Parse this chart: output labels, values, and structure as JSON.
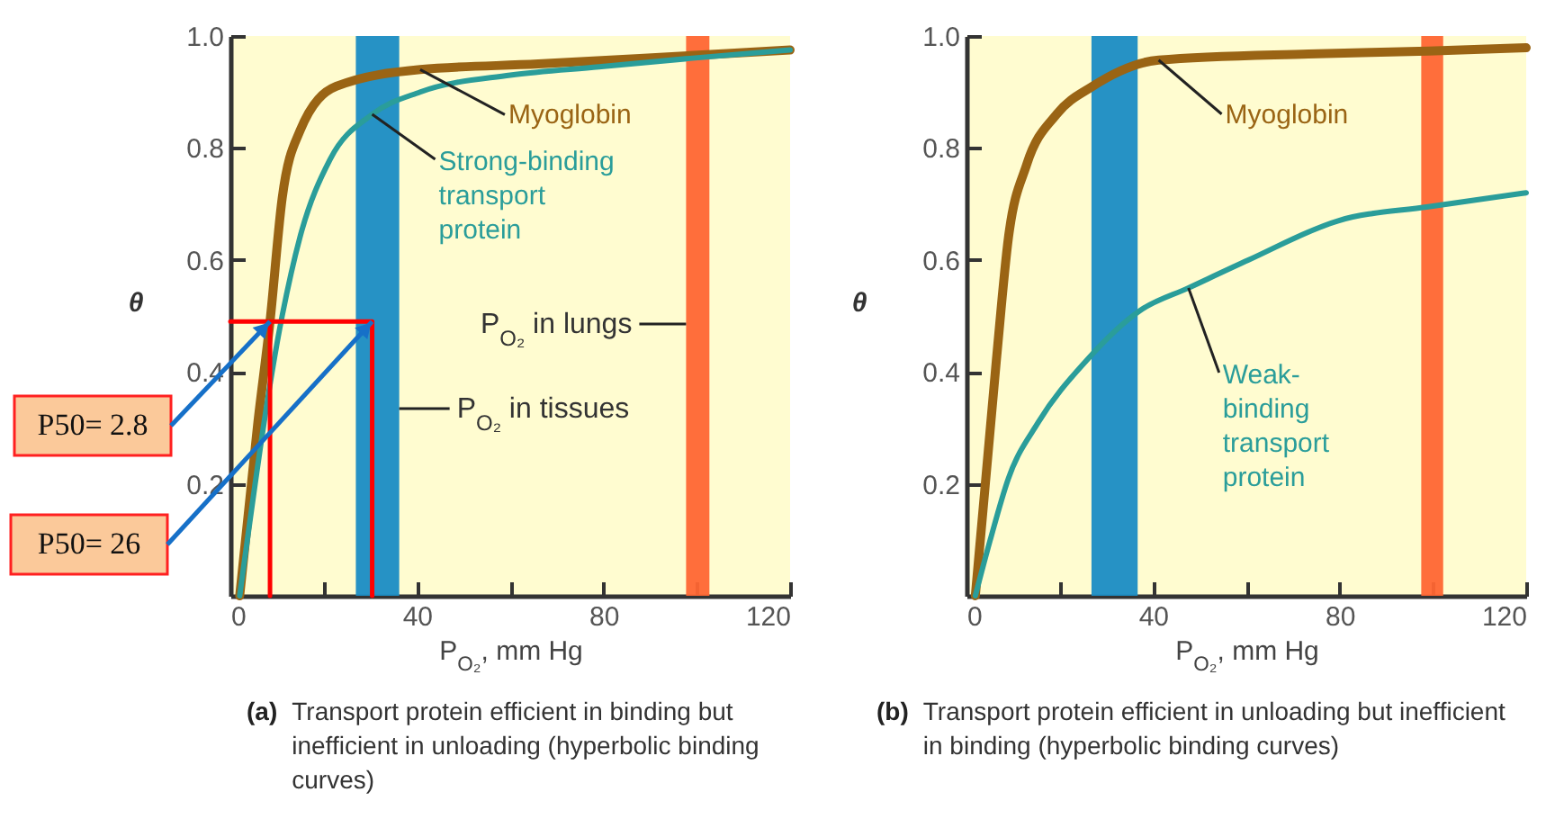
{
  "chart_data": [
    {
      "type": "line",
      "xlabel": "P$_{O₂}$, mm Hg",
      "ylabel": "θ",
      "xlim": [
        0,
        120
      ],
      "ylim": [
        0,
        1
      ],
      "xticks": [
        0,
        {
          "value": 20,
          "label": null
        },
        40,
        {
          "value": 60,
          "label": null
        },
        80,
        {
          "value": 100,
          "label": null
        },
        120
      ],
      "yticks": [
        0.2,
        0.4,
        0.6,
        0.8,
        {
          "value": 1,
          "label": "1.0"
        }
      ],
      "grid": false,
      "marker": "none",
      "line_style": "solid",
      "series": [
        {
          "name": "Myoglobin",
          "color": "#9a6414",
          "x": [
            2,
            5.9,
            8.5,
            11.1,
            14.9,
            22.7,
            40.7,
            66,
            98.5,
            120
          ],
          "values": [
            0,
            0.31,
            0.49,
            0.71,
            0.83,
            0.91,
            0.94,
            0.95,
            0.965,
            0.975
          ]
        },
        {
          "name": "Strong-binding transport protein",
          "color": "#2a9d9a",
          "x": [
            2,
            11.1,
            14.9,
            21.4,
            30.4,
            40.7,
            60,
            79,
            98.5,
            120
          ],
          "values": [
            0,
            0.5,
            0.64,
            0.78,
            0.86,
            0.9,
            0.93,
            0.945,
            0.96,
            0.975
          ]
        },
        {
          "color": "#ff0000",
          "x": [
            0,
            30.4,
            30.4
          ],
          "values": [
            0.49,
            0.49,
            0
          ]
        },
        {
          "color": "#ff0000",
          "x": [
            8.5,
            8.5
          ],
          "values": [
            0.49,
            0
          ]
        }
      ],
      "bands": [
        {
          "axis": "x",
          "from": 26.9,
          "to": 36.2,
          "label": "P$_{O₂}$ in tissues",
          "color": "#1a8cc4"
        },
        {
          "axis": "x",
          "from": 97.7,
          "to": 102.7,
          "label": "P$_{O₂}$ in lungs",
          "color": "#ff6633"
        }
      ],
      "annotations": [
        {
          "text": "P50= 2.8",
          "x": 8.5,
          "y": 0.49
        },
        {
          "text": "P50= 26",
          "x": 30.4,
          "y": 0.49
        },
        "(a) Transport protein efficient in binding but inefficient in unloading (hyperbolic binding curves)"
      ]
    },
    {
      "type": "line",
      "xlabel": "P$_{O₂}$, mm Hg",
      "ylabel": "θ",
      "xlim": [
        0,
        120
      ],
      "ylim": [
        0,
        1
      ],
      "xticks": [
        0,
        {
          "value": 20,
          "label": null
        },
        40,
        {
          "value": 60,
          "label": null
        },
        80,
        {
          "value": 100,
          "label": null
        },
        120
      ],
      "yticks": [
        0.2,
        0.4,
        0.6,
        0.8,
        {
          "value": 1,
          "label": "1.0"
        }
      ],
      "grid": false,
      "marker": "none",
      "line_style": "solid",
      "series": [
        {
          "name": "Myoglobin",
          "color": "#9a6414",
          "x": [
            1.9,
            6.4,
            9,
            12.9,
            19.3,
            27,
            41.2,
            73.3,
            99,
            120
          ],
          "values": [
            0,
            0.42,
            0.64,
            0.77,
            0.86,
            0.91,
            0.957,
            0.968,
            0.973,
            0.979
          ]
        },
        {
          "name": "Weak-binding transport protein",
          "color": "#2a9d9a",
          "x": [
            1.9,
            5.1,
            9,
            15.4,
            25.7,
            37.3,
            47.6,
            60.5,
            79.7,
            99,
            120
          ],
          "values": [
            0,
            0.1,
            0.21,
            0.31,
            0.42,
            0.51,
            0.55,
            0.6,
            0.67,
            0.695,
            0.72
          ]
        }
      ],
      "bands": [
        {
          "axis": "x",
          "from": 26.8,
          "to": 36.7,
          "color": "#1a8cc4"
        },
        {
          "axis": "x",
          "from": 97.5,
          "to": 102.2,
          "color": "#ff6633"
        }
      ],
      "annotations": [
        "(b) Transport protein efficient in unloading but inefficient in binding (hyperbolic binding curves)"
      ]
    }
  ]
}
